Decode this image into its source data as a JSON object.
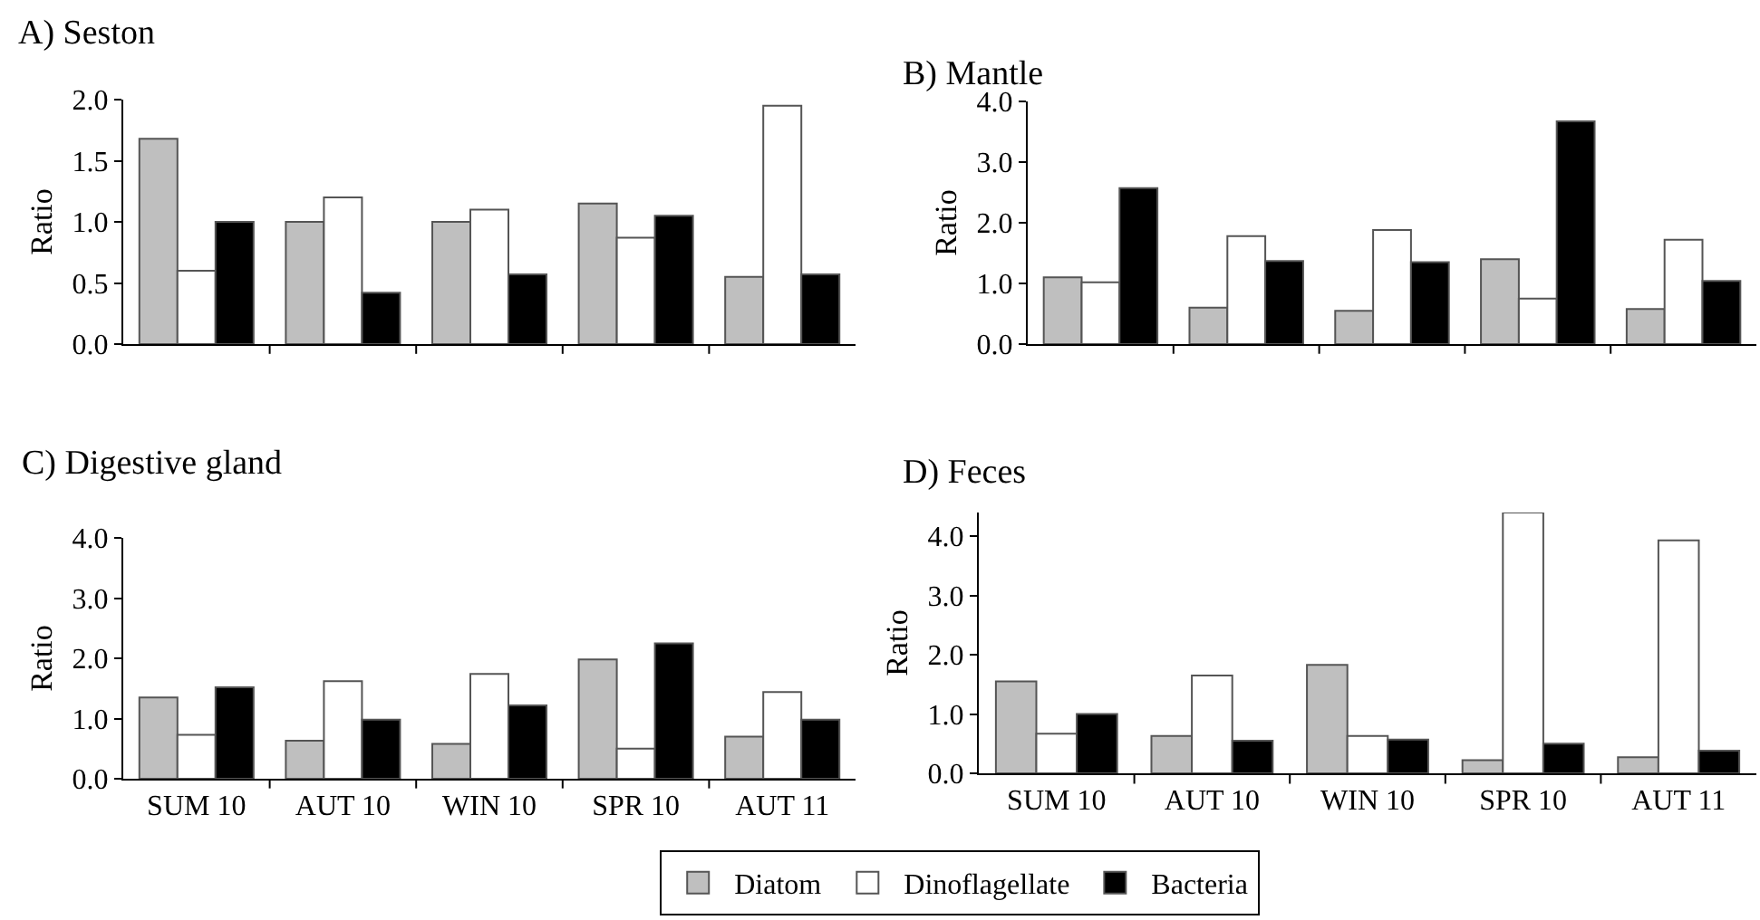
{
  "chart_data": [
    {
      "type": "bar",
      "title": "A) Seston",
      "ylabel": "Ratio",
      "categories": [
        null,
        null,
        null,
        null,
        null
      ],
      "tick_labels": "y",
      "grid": false,
      "legend": false,
      "ylim": [
        0,
        2
      ],
      "yticks": [
        {
          "value": 0,
          "label": "0.0"
        },
        {
          "value": 0.5,
          "label": "0.5"
        },
        {
          "value": 1,
          "label": "1.0"
        },
        {
          "value": 1.5,
          "label": "1.5"
        },
        {
          "value": 2,
          "label": "2.0"
        }
      ],
      "series": [
        {
          "color": "#bfbfbf",
          "values": [
            1.68,
            1.0,
            1.0,
            1.15,
            0.55
          ]
        },
        {
          "color": "#ffffff",
          "values": [
            0.6,
            1.2,
            1.1,
            0.87,
            1.95
          ]
        },
        {
          "color": "#000000",
          "values": [
            1.0,
            0.42,
            0.57,
            1.05,
            0.57
          ]
        }
      ]
    },
    {
      "type": "bar",
      "title": "B) Mantle",
      "ylabel": "Ratio",
      "categories": [
        null,
        null,
        null,
        null,
        null
      ],
      "tick_labels": "y",
      "grid": false,
      "legend": false,
      "ylim": [
        0,
        4
      ],
      "yticks": [
        {
          "value": 0,
          "label": "0.0"
        },
        {
          "value": 1,
          "label": "1.0"
        },
        {
          "value": 2,
          "label": "2.0"
        },
        {
          "value": 3,
          "label": "3.0"
        },
        {
          "value": 4,
          "label": "4.0"
        }
      ],
      "series": [
        {
          "color": "#bfbfbf",
          "values": [
            1.1,
            0.6,
            0.55,
            1.4,
            0.58
          ]
        },
        {
          "color": "#ffffff",
          "values": [
            1.02,
            1.78,
            1.88,
            0.75,
            1.72
          ]
        },
        {
          "color": "#000000",
          "values": [
            2.57,
            1.37,
            1.35,
            3.67,
            1.04
          ]
        }
      ]
    },
    {
      "type": "bar",
      "title": "C) Digestive gland",
      "ylabel": "Ratio",
      "categories": [
        "SUM 10",
        "AUT 10",
        "WIN 10",
        "SPR 10",
        "AUT 11"
      ],
      "grid": false,
      "legend": false,
      "ylim": [
        0,
        4
      ],
      "yticks": [
        {
          "value": 0,
          "label": "0.0"
        },
        {
          "value": 1,
          "label": "1.0"
        },
        {
          "value": 2,
          "label": "2.0"
        },
        {
          "value": 3,
          "label": "3.0"
        },
        {
          "value": 4,
          "label": "4.0"
        }
      ],
      "series": [
        {
          "color": "#bfbfbf",
          "values": [
            1.35,
            0.63,
            0.58,
            1.98,
            0.7
          ]
        },
        {
          "color": "#ffffff",
          "values": [
            0.73,
            1.62,
            1.74,
            0.5,
            1.44
          ]
        },
        {
          "color": "#000000",
          "values": [
            1.52,
            0.98,
            1.22,
            2.25,
            0.98
          ]
        }
      ]
    },
    {
      "type": "bar",
      "title": "D) Feces",
      "ylabel": "Ratio",
      "categories": [
        "SUM 10",
        "AUT 10",
        "WIN 10",
        "SPR 10",
        "AUT 11"
      ],
      "grid": false,
      "legend": "bottom",
      "ylim": [
        0,
        4.4
      ],
      "yticks": [
        {
          "value": 0,
          "label": "0.0"
        },
        {
          "value": 1,
          "label": "1.0"
        },
        {
          "value": 2,
          "label": "2.0"
        },
        {
          "value": 3,
          "label": "3.0"
        },
        {
          "value": 4,
          "label": "4.0"
        }
      ],
      "series": [
        {
          "name": "Diatom",
          "color": "#bfbfbf",
          "values": [
            1.55,
            0.63,
            1.83,
            0.22,
            0.27
          ]
        },
        {
          "name": "Dinoflagellate",
          "color": "#ffffff",
          "values": [
            0.67,
            1.65,
            0.63,
            4.4,
            3.93
          ]
        },
        {
          "name": "Bacteria",
          "color": "#000000",
          "values": [
            1.0,
            0.55,
            0.57,
            0.5,
            0.38
          ]
        }
      ]
    }
  ]
}
